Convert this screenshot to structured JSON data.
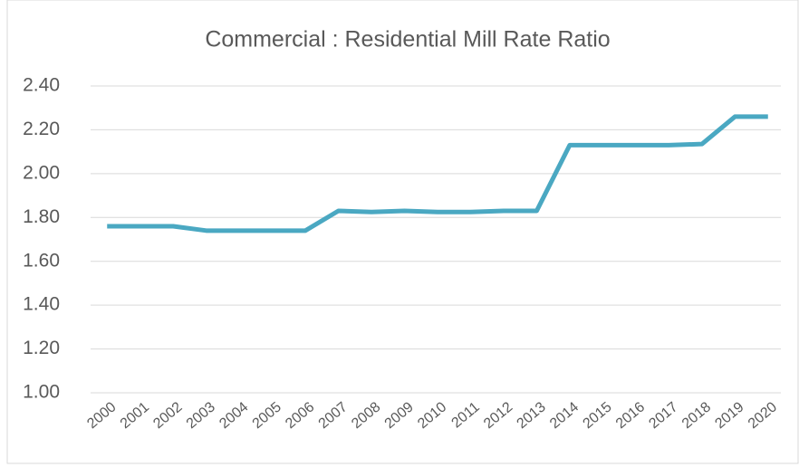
{
  "chart_data": {
    "type": "line",
    "title": "Commercial : Residential Mill Rate Ratio",
    "categories": [
      "2000",
      "2001",
      "2002",
      "2003",
      "2004",
      "2005",
      "2006",
      "2007",
      "2008",
      "2009",
      "2010",
      "2011",
      "2012",
      "2013",
      "2014",
      "2015",
      "2016",
      "2017",
      "2018",
      "2019",
      "2020"
    ],
    "values": [
      1.76,
      1.76,
      1.76,
      1.74,
      1.74,
      1.74,
      1.74,
      1.83,
      1.825,
      1.83,
      1.825,
      1.825,
      1.83,
      1.83,
      2.13,
      2.13,
      2.13,
      2.13,
      2.135,
      2.26,
      2.26
    ],
    "color": "#4aa8c2",
    "ylim": [
      1,
      2.4
    ],
    "yticks": [
      {
        "value": 1,
        "label": "1.00"
      },
      {
        "value": 1.2,
        "label": "1.20"
      },
      {
        "value": 1.4,
        "label": "1.40"
      },
      {
        "value": 1.6,
        "label": "1.60"
      },
      {
        "value": 1.8,
        "label": "1.80"
      },
      {
        "value": 2,
        "label": "2.00"
      },
      {
        "value": 2.2,
        "label": "2.20"
      },
      {
        "value": 2.4,
        "label": "2.40"
      }
    ],
    "grid": true
  }
}
